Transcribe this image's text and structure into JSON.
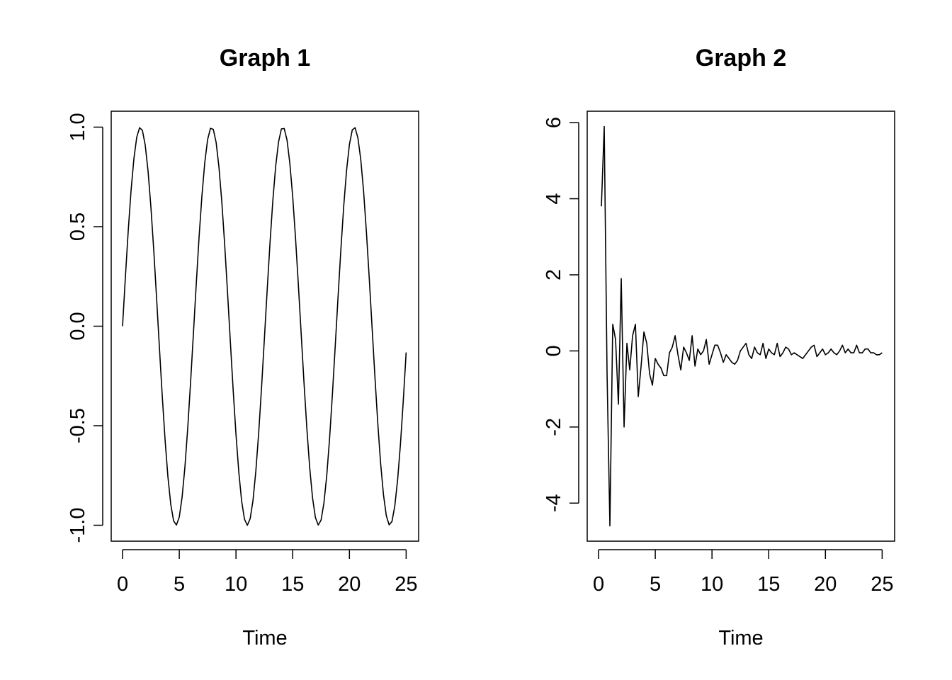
{
  "chart_data": [
    {
      "type": "line",
      "title": "Graph 1",
      "xlabel": "Time",
      "ylabel": "",
      "xlim": [
        0,
        25
      ],
      "ylim": [
        -1,
        1
      ],
      "xticks": [
        "0",
        "5",
        "10",
        "15",
        "20",
        "25"
      ],
      "yticks": [
        "-1.0",
        "-0.5",
        "0.0",
        "0.5",
        "1.0"
      ],
      "grid": false,
      "legend": "none",
      "series": [
        {
          "x": [
            0.0,
            0.25,
            0.5,
            0.75,
            1.0,
            1.25,
            1.5,
            1.75,
            2.0,
            2.25,
            2.5,
            2.75,
            3.0,
            3.25,
            3.5,
            3.75,
            4.0,
            4.25,
            4.5,
            4.75,
            5.0,
            5.25,
            5.5,
            5.75,
            6.0,
            6.25,
            6.5,
            6.75,
            7.0,
            7.25,
            7.5,
            7.75,
            8.0,
            8.25,
            8.5,
            8.75,
            9.0,
            9.25,
            9.5,
            9.75,
            10.0,
            10.25,
            10.5,
            10.75,
            11.0,
            11.25,
            11.5,
            11.75,
            12.0,
            12.25,
            12.5,
            12.75,
            13.0,
            13.25,
            13.5,
            13.75,
            14.0,
            14.25,
            14.5,
            14.75,
            15.0,
            15.25,
            15.5,
            15.75,
            16.0,
            16.25,
            16.5,
            16.75,
            17.0,
            17.25,
            17.5,
            17.75,
            18.0,
            18.25,
            18.5,
            18.75,
            19.0,
            19.25,
            19.5,
            19.75,
            20.0,
            20.25,
            20.5,
            20.75,
            21.0,
            21.25,
            21.5,
            21.75,
            22.0,
            22.25,
            22.5,
            22.75,
            23.0,
            23.25,
            23.5,
            23.75,
            24.0,
            24.25,
            24.5,
            24.75,
            25.0
          ],
          "y": [
            0.0,
            0.247,
            0.479,
            0.682,
            0.841,
            0.949,
            0.997,
            0.984,
            0.909,
            0.778,
            0.598,
            0.382,
            0.141,
            -0.108,
            -0.351,
            -0.572,
            -0.757,
            -0.895,
            -0.978,
            -0.999,
            -0.959,
            -0.859,
            -0.706,
            -0.508,
            -0.279,
            -0.033,
            0.215,
            0.451,
            0.657,
            0.823,
            0.938,
            0.994,
            0.989,
            0.923,
            0.798,
            0.625,
            0.412,
            0.174,
            -0.075,
            -0.32,
            -0.544,
            -0.734,
            -0.88,
            -0.97,
            -1.0,
            -0.967,
            -0.875,
            -0.728,
            -0.537,
            -0.311,
            -0.066,
            0.182,
            0.42,
            0.632,
            0.804,
            0.925,
            0.991,
            0.993,
            0.935,
            0.817,
            0.65,
            0.441,
            0.206,
            -0.041,
            -0.288,
            -0.516,
            -0.712,
            -0.863,
            -0.961,
            -0.999,
            -0.974,
            -0.889,
            -0.751,
            -0.565,
            -0.342,
            -0.099,
            0.15,
            0.389,
            0.605,
            0.784,
            0.913,
            0.986,
            0.997,
            0.945,
            0.837,
            0.677,
            0.471,
            0.238,
            -0.009,
            -0.256,
            -0.488,
            -0.689,
            -0.846,
            -0.952,
            -0.998,
            -0.981,
            -0.903,
            -0.771,
            -0.591,
            -0.372,
            -0.132
          ]
        }
      ]
    },
    {
      "type": "line",
      "title": "Graph 2",
      "xlabel": "Time",
      "ylabel": "",
      "xlim": [
        0,
        25
      ],
      "ylim": [
        -5,
        6.5
      ],
      "xticks": [
        "0",
        "5",
        "10",
        "15",
        "20",
        "25"
      ],
      "yticks": [
        "-4",
        "-2",
        "0",
        "2",
        "4",
        "6"
      ],
      "grid": false,
      "legend": "none",
      "series": [
        {
          "x": [
            0.25,
            0.5,
            0.75,
            1.0,
            1.25,
            1.5,
            1.75,
            2.0,
            2.25,
            2.5,
            2.75,
            3.0,
            3.25,
            3.5,
            3.75,
            4.0,
            4.25,
            4.5,
            4.75,
            5.0,
            5.25,
            5.5,
            5.75,
            6.0,
            6.25,
            6.5,
            6.75,
            7.0,
            7.25,
            7.5,
            7.75,
            8.0,
            8.25,
            8.5,
            8.75,
            9.0,
            9.25,
            9.5,
            9.75,
            10.0,
            10.25,
            10.5,
            10.75,
            11.0,
            11.25,
            11.5,
            11.75,
            12.0,
            12.25,
            12.5,
            12.75,
            13.0,
            13.25,
            13.5,
            13.75,
            14.0,
            14.25,
            14.5,
            14.75,
            15.0,
            15.25,
            15.5,
            15.75,
            16.0,
            16.25,
            16.5,
            16.75,
            17.0,
            17.25,
            17.5,
            17.75,
            18.0,
            18.25,
            18.5,
            18.75,
            19.0,
            19.25,
            19.5,
            19.75,
            20.0,
            20.25,
            20.5,
            20.75,
            21.0,
            21.25,
            21.5,
            21.75,
            22.0,
            22.25,
            22.5,
            22.75,
            23.0,
            23.25,
            23.5,
            23.75,
            24.0,
            24.25,
            24.5,
            24.75,
            25.0
          ],
          "y": [
            3.8,
            5.9,
            -0.6,
            -4.6,
            0.7,
            0.3,
            -1.4,
            1.9,
            -2.0,
            0.2,
            -0.5,
            0.4,
            0.7,
            -1.2,
            -0.4,
            0.5,
            0.2,
            -0.6,
            -0.9,
            -0.2,
            -0.35,
            -0.45,
            -0.65,
            -0.65,
            -0.05,
            0.1,
            0.4,
            -0.1,
            -0.5,
            0.1,
            -0.05,
            -0.25,
            0.4,
            -0.4,
            0.05,
            -0.1,
            0.0,
            0.3,
            -0.35,
            -0.1,
            0.15,
            0.15,
            -0.05,
            -0.3,
            -0.1,
            -0.2,
            -0.3,
            -0.35,
            -0.25,
            0.0,
            0.1,
            0.2,
            -0.1,
            -0.2,
            0.1,
            -0.05,
            -0.1,
            0.2,
            -0.2,
            0.05,
            -0.05,
            -0.1,
            0.2,
            -0.15,
            -0.05,
            0.1,
            0.05,
            -0.1,
            -0.05,
            -0.1,
            -0.15,
            -0.2,
            -0.1,
            0.0,
            0.1,
            0.15,
            -0.15,
            -0.05,
            0.05,
            -0.1,
            -0.05,
            0.05,
            -0.05,
            -0.1,
            0.0,
            0.15,
            -0.05,
            0.05,
            -0.05,
            -0.05,
            0.15,
            -0.05,
            -0.05,
            0.05,
            0.05,
            -0.05,
            -0.05,
            -0.1,
            -0.1,
            -0.05
          ]
        }
      ]
    }
  ]
}
